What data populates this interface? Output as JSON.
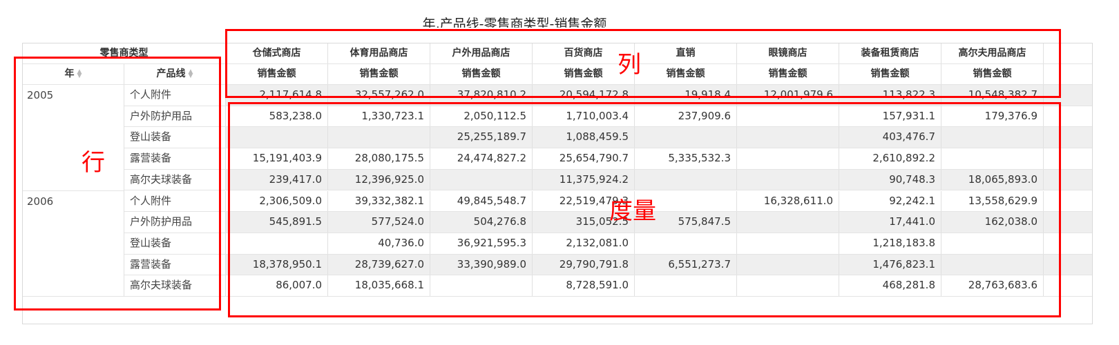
{
  "title": "年,产品线-零售商类型-销售金额",
  "header": {
    "row_dim_label": "零售商类型",
    "year_label": "年",
    "product_label": "产品线",
    "columns": [
      "仓储式商店",
      "体育用品商店",
      "户外用品商店",
      "百货商店",
      "直销",
      "眼镜商店",
      "装备租赁商店",
      "高尔夫用品商店"
    ],
    "measure_label": "销售金额"
  },
  "annotations": {
    "rows": "行",
    "columns": "列",
    "measures": "度量"
  },
  "annotation_color": "#ff0000",
  "groups": [
    {
      "year": "2005",
      "rows": [
        {
          "product": "个人附件",
          "values": [
            "2,117,614.8",
            "32,557,262.0",
            "37,820,810.2",
            "20,594,172.8",
            "19,918.4",
            "12,001,979.6",
            "113,822.3",
            "10,548,382.7"
          ]
        },
        {
          "product": "户外防护用品",
          "values": [
            "583,238.0",
            "1,330,723.1",
            "2,050,112.5",
            "1,710,003.4",
            "237,909.6",
            "",
            "157,931.1",
            "179,376.9"
          ]
        },
        {
          "product": "登山装备",
          "values": [
            "",
            "",
            "25,255,189.7",
            "1,088,459.5",
            "",
            "",
            "403,476.7",
            ""
          ]
        },
        {
          "product": "露营装备",
          "values": [
            "15,191,403.9",
            "28,080,175.5",
            "24,474,827.2",
            "25,654,790.7",
            "5,335,532.3",
            "",
            "2,610,892.2",
            ""
          ]
        },
        {
          "product": "高尔夫球装备",
          "values": [
            "239,417.0",
            "12,396,925.0",
            "",
            "11,375,924.2",
            "",
            "",
            "90,748.3",
            "18,065,893.0"
          ]
        }
      ]
    },
    {
      "year": "2006",
      "rows": [
        {
          "product": "个人附件",
          "values": [
            "2,306,509.0",
            "39,332,382.1",
            "49,845,548.7",
            "22,519,479.3",
            "",
            "16,328,611.0",
            "92,242.1",
            "13,558,629.9"
          ]
        },
        {
          "product": "户外防护用品",
          "values": [
            "545,891.5",
            "577,524.0",
            "504,276.8",
            "315,052.5",
            "575,847.5",
            "",
            "17,441.0",
            "162,038.0"
          ]
        },
        {
          "product": "登山装备",
          "values": [
            "",
            "40,736.0",
            "36,921,595.3",
            "2,132,081.0",
            "",
            "",
            "1,218,183.8",
            ""
          ]
        },
        {
          "product": "露营装备",
          "values": [
            "18,378,950.1",
            "28,739,627.0",
            "33,390,989.0",
            "29,790,791.8",
            "6,551,273.7",
            "",
            "1,476,823.1",
            ""
          ]
        },
        {
          "product": "高尔夫球装备",
          "values": [
            "86,007.0",
            "18,035,668.1",
            "",
            "8,728,591.0",
            "",
            "",
            "468,281.8",
            "28,763,683.6"
          ]
        }
      ]
    }
  ]
}
